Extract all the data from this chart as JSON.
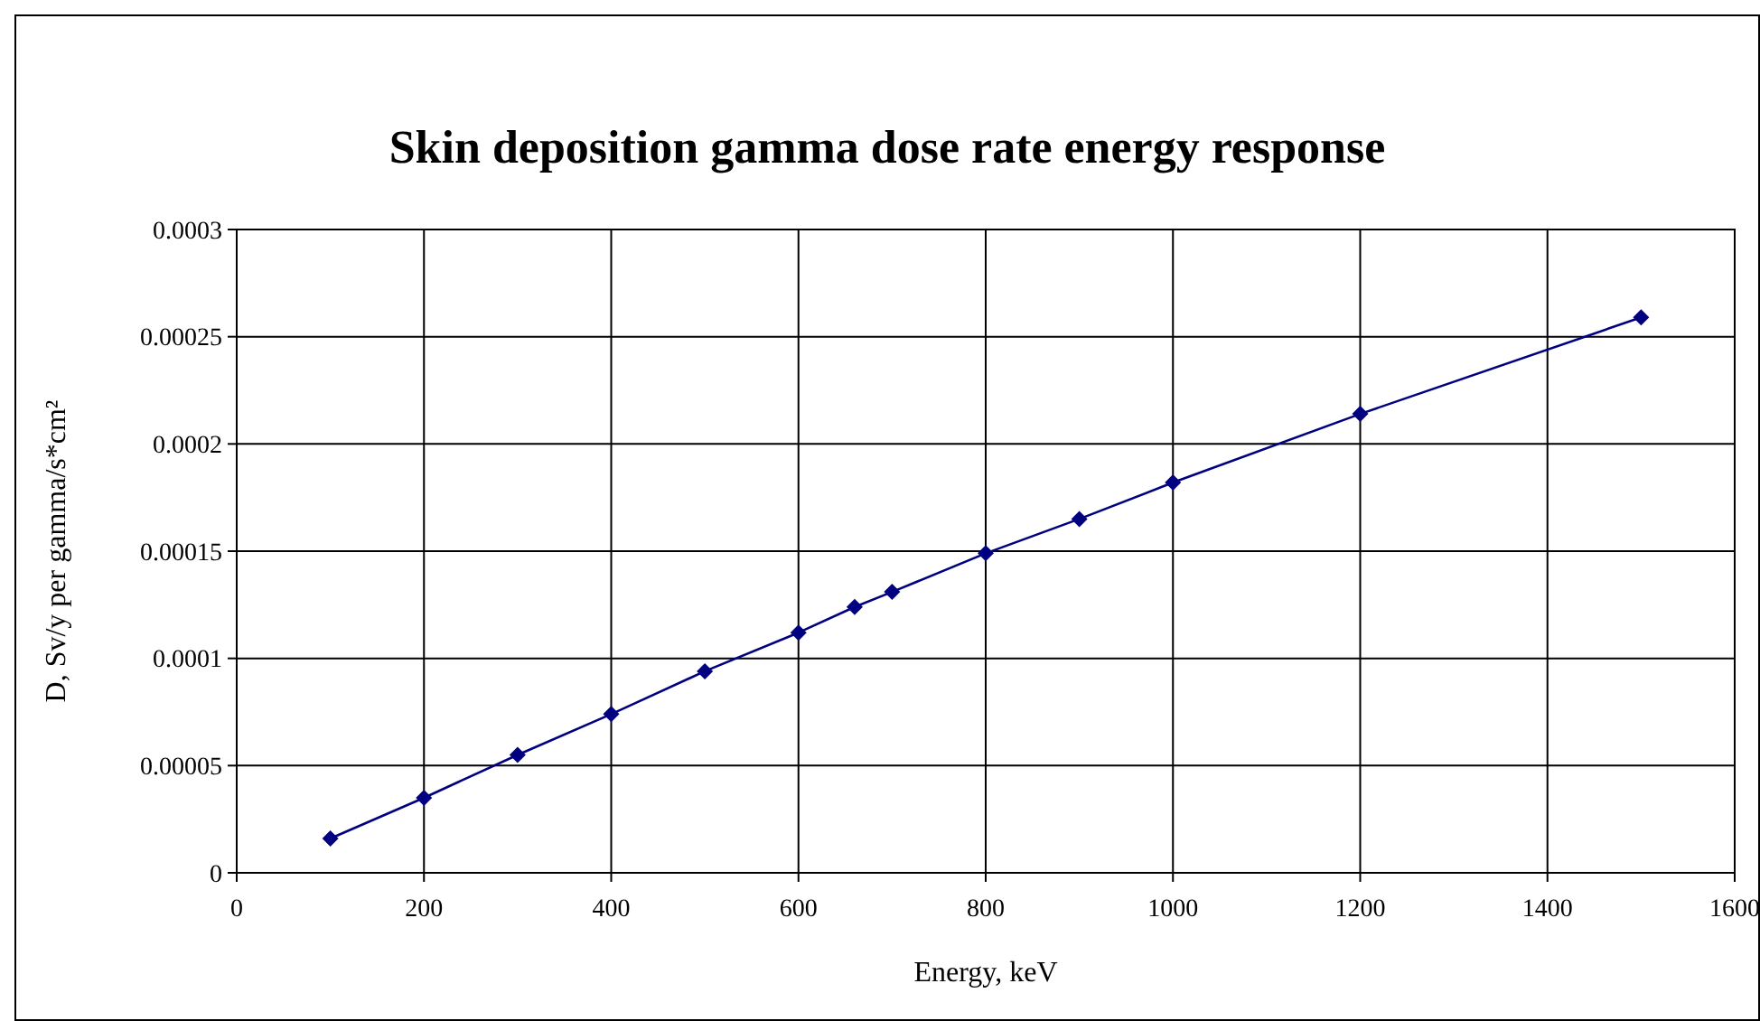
{
  "chart_data": {
    "type": "line",
    "title": "Skin deposition gamma dose rate energy response",
    "xlabel": "Energy, keV",
    "ylabel": "D, Sv/y per gamma/s*cm²",
    "x": [
      100,
      200,
      300,
      400,
      500,
      600,
      660,
      700,
      800,
      900,
      1000,
      1200,
      1500
    ],
    "series": [
      {
        "color": "#000080",
        "values": [
          1.6e-05,
          3.5e-05,
          5.5e-05,
          7.4e-05,
          9.4e-05,
          0.000112,
          0.000124,
          0.000131,
          0.000149,
          0.000165,
          0.000182,
          0.000214,
          0.000259
        ]
      }
    ],
    "xlim": [
      0,
      1600
    ],
    "xticks": [
      0,
      200,
      400,
      600,
      800,
      1000,
      1200,
      1400,
      1600
    ],
    "ylim": [
      0,
      0.0003
    ],
    "yticks": [
      0,
      {
        "value": 5e-05,
        "label": "0.00005"
      },
      0.0001,
      0.00015,
      0.0002,
      0.00025,
      0.0003
    ],
    "grid": true,
    "marker": "diamond",
    "line_style": "solid"
  }
}
